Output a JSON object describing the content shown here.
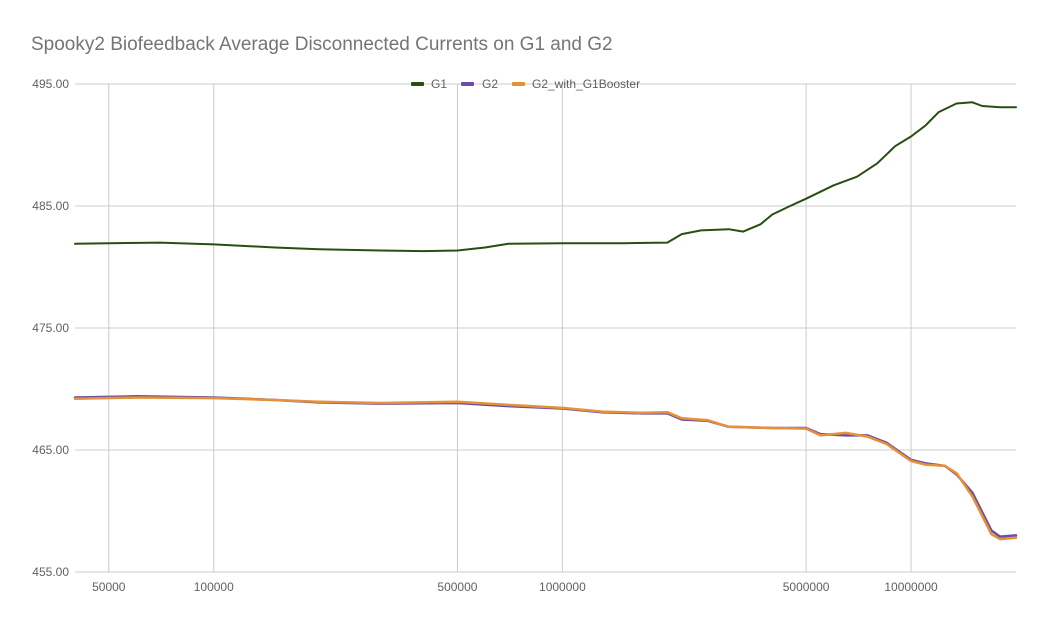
{
  "chart_data": {
    "type": "line",
    "title": "Spooky2 Biofeedback Average Disconnected Currents on G1 and G2",
    "xlabel": "",
    "ylabel": "",
    "x_scale": "log",
    "xlim": [
      40000,
      20000000
    ],
    "ylim": [
      455,
      495
    ],
    "x_ticks": [
      "50000",
      "100000",
      "500000",
      "1000000",
      "5000000",
      "10000000"
    ],
    "y_ticks": [
      "495.00",
      "485.00",
      "475.00",
      "465.00",
      "455.00"
    ],
    "grid": true,
    "legend_position": "top",
    "series": [
      {
        "name": "G1",
        "color": "#274e13",
        "points": [
          [
            40000,
            481.9
          ],
          [
            50000,
            481.95
          ],
          [
            70000,
            482.0
          ],
          [
            100000,
            481.85
          ],
          [
            150000,
            481.6
          ],
          [
            200000,
            481.45
          ],
          [
            300000,
            481.35
          ],
          [
            400000,
            481.3
          ],
          [
            500000,
            481.35
          ],
          [
            600000,
            481.6
          ],
          [
            700000,
            481.9
          ],
          [
            1000000,
            481.95
          ],
          [
            1500000,
            481.95
          ],
          [
            2000000,
            482.0
          ],
          [
            2200000,
            482.7
          ],
          [
            2500000,
            483.0
          ],
          [
            3000000,
            483.1
          ],
          [
            3300000,
            482.9
          ],
          [
            3700000,
            483.5
          ],
          [
            4000000,
            484.3
          ],
          [
            4500000,
            485.0
          ],
          [
            5000000,
            485.6
          ],
          [
            6000000,
            486.7
          ],
          [
            7000000,
            487.4
          ],
          [
            8000000,
            488.5
          ],
          [
            9000000,
            489.9
          ],
          [
            10000000,
            490.7
          ],
          [
            11000000,
            491.6
          ],
          [
            12000000,
            492.7
          ],
          [
            13500000,
            493.4
          ],
          [
            15000000,
            493.5
          ],
          [
            16000000,
            493.2
          ],
          [
            18000000,
            493.1
          ],
          [
            20000000,
            493.1
          ]
        ]
      },
      {
        "name": "G2",
        "color": "#674ea7",
        "points": [
          [
            40000,
            469.3
          ],
          [
            60000,
            469.4
          ],
          [
            100000,
            469.3
          ],
          [
            150000,
            469.1
          ],
          [
            200000,
            468.9
          ],
          [
            300000,
            468.8
          ],
          [
            500000,
            468.85
          ],
          [
            700000,
            468.6
          ],
          [
            1000000,
            468.4
          ],
          [
            1300000,
            468.1
          ],
          [
            1700000,
            468.0
          ],
          [
            2000000,
            468.0
          ],
          [
            2200000,
            467.5
          ],
          [
            2600000,
            467.4
          ],
          [
            3000000,
            466.9
          ],
          [
            4000000,
            466.8
          ],
          [
            5000000,
            466.8
          ],
          [
            5500000,
            466.3
          ],
          [
            6500000,
            466.2
          ],
          [
            7500000,
            466.2
          ],
          [
            8500000,
            465.6
          ],
          [
            10000000,
            464.2
          ],
          [
            11000000,
            463.9
          ],
          [
            12500000,
            463.7
          ],
          [
            13500000,
            463.0
          ],
          [
            15000000,
            461.5
          ],
          [
            17000000,
            458.4
          ],
          [
            18000000,
            457.9
          ],
          [
            20000000,
            458.0
          ]
        ]
      },
      {
        "name": "G2_with_G1Booster",
        "color": "#e69138",
        "points": [
          [
            40000,
            469.2
          ],
          [
            60000,
            469.3
          ],
          [
            100000,
            469.25
          ],
          [
            150000,
            469.1
          ],
          [
            200000,
            468.95
          ],
          [
            300000,
            468.85
          ],
          [
            500000,
            468.95
          ],
          [
            700000,
            468.7
          ],
          [
            1000000,
            468.45
          ],
          [
            1300000,
            468.15
          ],
          [
            1700000,
            468.05
          ],
          [
            2000000,
            468.1
          ],
          [
            2200000,
            467.6
          ],
          [
            2600000,
            467.45
          ],
          [
            3000000,
            466.9
          ],
          [
            4000000,
            466.8
          ],
          [
            5000000,
            466.75
          ],
          [
            5500000,
            466.2
          ],
          [
            6500000,
            466.4
          ],
          [
            7500000,
            466.1
          ],
          [
            8500000,
            465.5
          ],
          [
            10000000,
            464.1
          ],
          [
            11000000,
            463.8
          ],
          [
            12500000,
            463.7
          ],
          [
            13500000,
            463.1
          ],
          [
            15000000,
            461.2
          ],
          [
            17000000,
            458.1
          ],
          [
            18000000,
            457.7
          ],
          [
            20000000,
            457.8
          ]
        ]
      }
    ]
  }
}
